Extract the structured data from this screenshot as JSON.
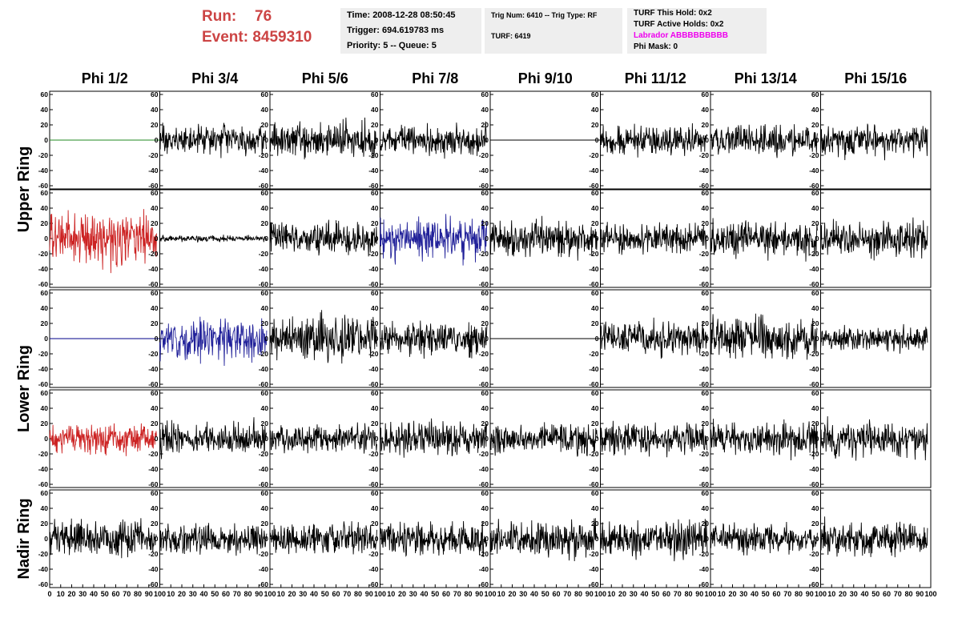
{
  "header": {
    "run_label": "Run:",
    "run_value": "76",
    "event_label": "Event:",
    "event_value": "8459310",
    "time": "Time: 2008-12-28 08:50:45",
    "trigger": "Trigger: 694.619783 ms",
    "priority": "Priority: 5 -- Queue: 5",
    "trig_num": "Trig Num: 6410 -- Trig Type: RF",
    "turf": "TURF: 6419",
    "turf_this_hold": "TURF This Hold: 0x2",
    "turf_active_holds": "TURF Active Holds: 0x2",
    "labrador": "Labrador ABBBBBBBBB",
    "phi_mask": "Phi Mask: 0"
  },
  "colors": {
    "header_run": "#cc4444",
    "labrador": "#ee00ee",
    "trace_default": "#000000",
    "trace_red": "#cc2222",
    "trace_blue": "#22229a",
    "trace_green": "#228822",
    "trace_navy": "#000088"
  },
  "chart_data": {
    "type": "line",
    "columns": [
      "Phi 1/2",
      "Phi 3/4",
      "Phi 5/6",
      "Phi 7/8",
      "Phi 9/10",
      "Phi 11/12",
      "Phi 13/14",
      "Phi 15/16"
    ],
    "row_groups": [
      {
        "label": "Upper Ring",
        "rows": [
          0,
          1
        ]
      },
      {
        "label": "Lower Ring",
        "rows": [
          2,
          3
        ]
      },
      {
        "label": "Nadir Ring",
        "rows": [
          4
        ]
      }
    ],
    "ylim": [
      -60,
      60
    ],
    "y_ticks": [
      "60",
      "40",
      "20",
      "0",
      "-20",
      "-40",
      "-60"
    ],
    "xlim": [
      0,
      100
    ],
    "x_ticks": [
      "0",
      "10",
      "20",
      "30",
      "40",
      "50",
      "60",
      "70",
      "80",
      "90",
      "100"
    ],
    "trace_x_range": [
      0,
      97
    ],
    "panels": [
      [
        {
          "color": "green",
          "amp": 0,
          "flat": true
        },
        {
          "color": "black",
          "amp": 9
        },
        {
          "color": "black",
          "amp": 11
        },
        {
          "color": "black",
          "amp": 9
        },
        {
          "color": "black",
          "amp": 0,
          "flat": true
        },
        {
          "color": "black",
          "amp": 9
        },
        {
          "color": "black",
          "amp": 9
        },
        {
          "color": "black",
          "amp": 10
        }
      ],
      [
        {
          "color": "red",
          "amp": 16
        },
        {
          "color": "black",
          "amp": 2
        },
        {
          "color": "black",
          "amp": 10
        },
        {
          "color": "blue",
          "amp": 13
        },
        {
          "color": "black",
          "amp": 11
        },
        {
          "color": "black",
          "amp": 9
        },
        {
          "color": "black",
          "amp": 11
        },
        {
          "color": "black",
          "amp": 12
        }
      ],
      [
        {
          "color": "navy",
          "amp": 0,
          "flat": true
        },
        {
          "color": "blue",
          "amp": 13
        },
        {
          "color": "black",
          "amp": 14
        },
        {
          "color": "black",
          "amp": 10
        },
        {
          "color": "black",
          "amp": 0,
          "flat": true
        },
        {
          "color": "black",
          "amp": 11
        },
        {
          "color": "black",
          "amp": 13
        },
        {
          "color": "black",
          "amp": 8
        }
      ],
      [
        {
          "color": "red",
          "amp": 9
        },
        {
          "color": "black",
          "amp": 10
        },
        {
          "color": "black",
          "amp": 9
        },
        {
          "color": "black",
          "amp": 11
        },
        {
          "color": "black",
          "amp": 9
        },
        {
          "color": "black",
          "amp": 10
        },
        {
          "color": "black",
          "amp": 11
        },
        {
          "color": "black",
          "amp": 11
        }
      ],
      [
        {
          "color": "black",
          "amp": 11
        },
        {
          "color": "black",
          "amp": 9
        },
        {
          "color": "black",
          "amp": 10
        },
        {
          "color": "black",
          "amp": 10
        },
        {
          "color": "black",
          "amp": 11
        },
        {
          "color": "black",
          "amp": 11
        },
        {
          "color": "black",
          "amp": 9
        },
        {
          "color": "black",
          "amp": 11
        }
      ]
    ]
  }
}
